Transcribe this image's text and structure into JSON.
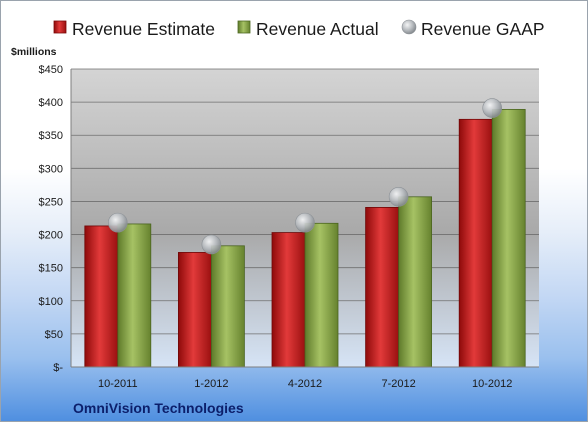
{
  "chart_data": {
    "type": "bar",
    "title": "",
    "unit_label": "$millions",
    "company": "OmniVision Technologies",
    "categories": [
      "10-2011",
      "1-2012",
      "4-2012",
      "7-2012",
      "10-2012"
    ],
    "series": [
      {
        "name": "Revenue Estimate",
        "type": "bar",
        "color": "#cc1a1a",
        "values": [
          213,
          173,
          203,
          241,
          374
        ]
      },
      {
        "name": "Revenue Actual",
        "type": "bar",
        "color": "#8aa84a",
        "values": [
          216,
          183,
          217,
          257,
          389
        ]
      },
      {
        "name": "Revenue GAAP",
        "type": "marker",
        "color": "#b4b8bc",
        "values": [
          218,
          185,
          218,
          257,
          391
        ]
      }
    ],
    "ylim": [
      0,
      450
    ],
    "yticks": [
      0,
      50,
      100,
      150,
      200,
      250,
      300,
      350,
      400,
      450
    ],
    "ytick_labels": [
      "$-",
      "$50",
      "$100",
      "$150",
      "$200",
      "$250",
      "$300",
      "$350",
      "$400",
      "$450"
    ],
    "grid": true,
    "legend_position": "top"
  }
}
